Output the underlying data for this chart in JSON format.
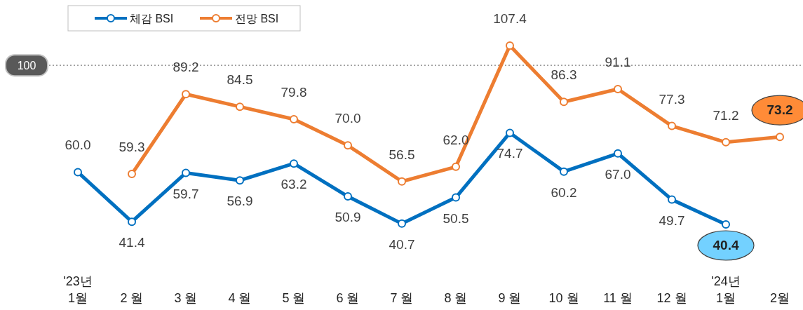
{
  "chart_data": {
    "type": "line",
    "categories": [
      "'23년\n1월",
      "2 월",
      "3 월",
      "4 월",
      "5 월",
      "6 월",
      "7 월",
      "8 월",
      "9 월",
      "10 월",
      "11 월",
      "12 월",
      "'24년\n1월",
      "2월"
    ],
    "series": [
      {
        "name": "체감 BSI",
        "color": "#0070c0",
        "values": [
          60.0,
          41.4,
          59.7,
          56.9,
          63.2,
          50.9,
          40.7,
          50.5,
          74.7,
          60.2,
          67.0,
          49.7,
          40.4,
          null
        ],
        "value_labels": [
          "60.0",
          "41.4",
          "59.7",
          "56.9",
          "63.2",
          "50.9",
          "40.7",
          "50.5",
          "74.7",
          "60.2",
          "67.0",
          "49.7",
          "40.4",
          null
        ]
      },
      {
        "name": "전망 BSI",
        "color": "#ed7d31",
        "values": [
          null,
          59.3,
          89.2,
          84.5,
          79.8,
          70.0,
          56.5,
          62.0,
          107.4,
          86.3,
          91.1,
          77.3,
          71.2,
          73.2
        ],
        "value_labels": [
          null,
          "59.3",
          "89.2",
          "84.5",
          "79.8",
          "70.0",
          "56.5",
          "62.0",
          "107.4",
          "86.3",
          "91.1",
          "77.3",
          "71.2",
          "73.2"
        ]
      }
    ],
    "tick_labels": "x",
    "ref_lines": [
      {
        "axis": "y",
        "value": 100,
        "label": "100",
        "color": "#7f7f7f",
        "line_style": "dotted"
      }
    ],
    "legend": "top left",
    "marker": "circle",
    "line_style": "solid"
  }
}
